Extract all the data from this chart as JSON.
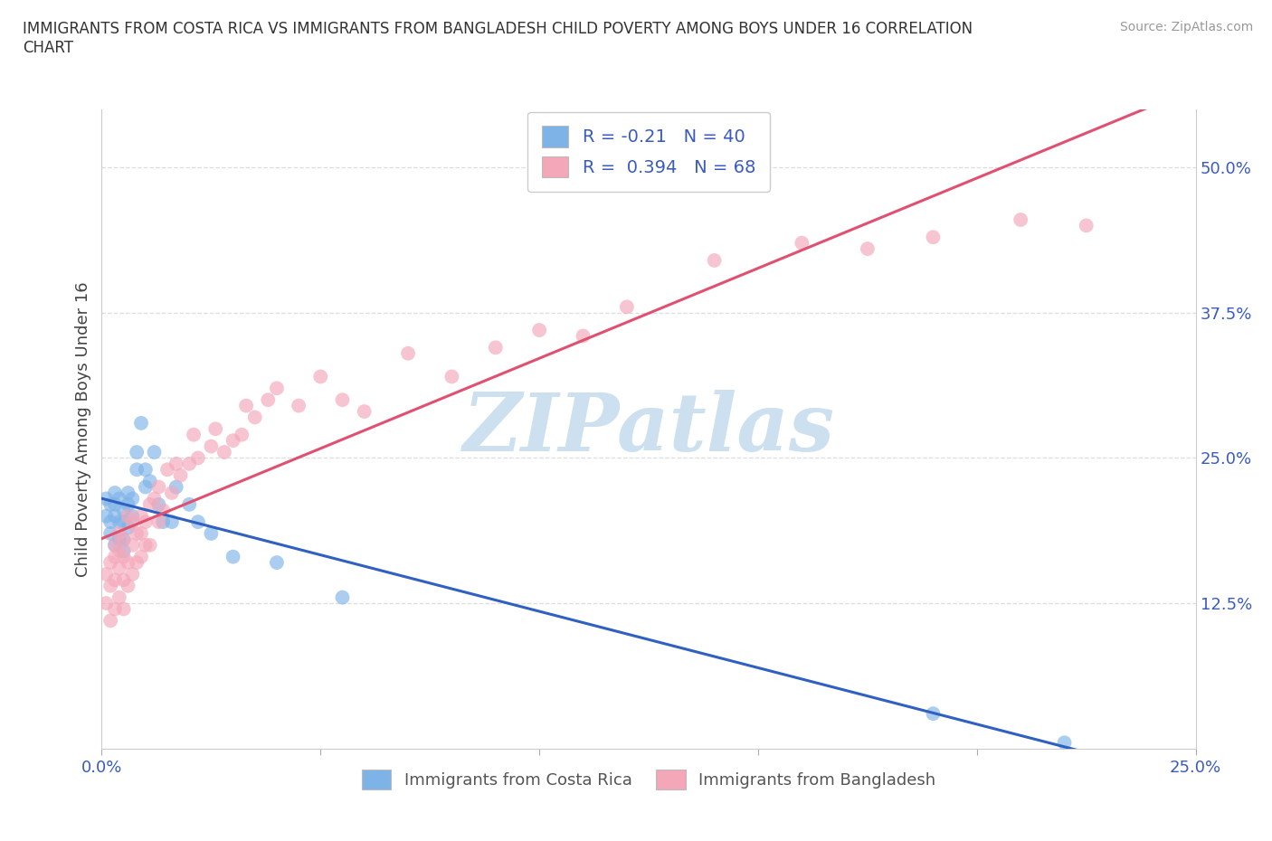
{
  "title": "IMMIGRANTS FROM COSTA RICA VS IMMIGRANTS FROM BANGLADESH CHILD POVERTY AMONG BOYS UNDER 16 CORRELATION\nCHART",
  "source_text": "Source: ZipAtlas.com",
  "ylabel": "Child Poverty Among Boys Under 16",
  "xlim": [
    0.0,
    0.25
  ],
  "ylim": [
    0.0,
    0.55
  ],
  "xticks": [
    0.0,
    0.05,
    0.1,
    0.15,
    0.2,
    0.25
  ],
  "xticklabels": [
    "0.0%",
    "",
    "",
    "",
    "",
    "25.0%"
  ],
  "yticks": [
    0.0,
    0.125,
    0.25,
    0.375,
    0.5
  ],
  "yticklabels": [
    "",
    "12.5%",
    "25.0%",
    "37.5%",
    "50.0%"
  ],
  "costa_rica_color": "#7eb3e8",
  "bangladesh_color": "#f4a7b9",
  "costa_rica_line_color": "#3060c0",
  "bangladesh_line_color": "#e05070",
  "costa_rica_R": -0.21,
  "costa_rica_N": 40,
  "bangladesh_R": 0.394,
  "bangladesh_N": 68,
  "legend_text_color": "#3a5bbf",
  "watermark_text": "ZIPatlas",
  "watermark_color": "#cce0f0",
  "costa_rica_x": [
    0.001,
    0.001,
    0.002,
    0.002,
    0.002,
    0.003,
    0.003,
    0.003,
    0.003,
    0.004,
    0.004,
    0.004,
    0.005,
    0.005,
    0.005,
    0.005,
    0.006,
    0.006,
    0.006,
    0.007,
    0.007,
    0.008,
    0.008,
    0.009,
    0.01,
    0.01,
    0.011,
    0.012,
    0.013,
    0.014,
    0.016,
    0.017,
    0.02,
    0.022,
    0.025,
    0.03,
    0.04,
    0.055,
    0.19,
    0.22
  ],
  "costa_rica_y": [
    0.2,
    0.215,
    0.195,
    0.21,
    0.185,
    0.175,
    0.2,
    0.21,
    0.22,
    0.18,
    0.195,
    0.215,
    0.17,
    0.18,
    0.195,
    0.205,
    0.19,
    0.21,
    0.22,
    0.2,
    0.215,
    0.24,
    0.255,
    0.28,
    0.225,
    0.24,
    0.23,
    0.255,
    0.21,
    0.195,
    0.195,
    0.225,
    0.21,
    0.195,
    0.185,
    0.165,
    0.16,
    0.13,
    0.03,
    0.005
  ],
  "bangladesh_x": [
    0.001,
    0.001,
    0.002,
    0.002,
    0.002,
    0.003,
    0.003,
    0.003,
    0.003,
    0.004,
    0.004,
    0.004,
    0.004,
    0.005,
    0.005,
    0.005,
    0.005,
    0.006,
    0.006,
    0.006,
    0.007,
    0.007,
    0.007,
    0.008,
    0.008,
    0.009,
    0.009,
    0.009,
    0.01,
    0.01,
    0.011,
    0.011,
    0.012,
    0.013,
    0.013,
    0.014,
    0.015,
    0.016,
    0.017,
    0.018,
    0.02,
    0.021,
    0.022,
    0.025,
    0.026,
    0.028,
    0.03,
    0.032,
    0.033,
    0.035,
    0.038,
    0.04,
    0.045,
    0.05,
    0.055,
    0.06,
    0.07,
    0.08,
    0.09,
    0.1,
    0.11,
    0.12,
    0.14,
    0.16,
    0.175,
    0.19,
    0.21,
    0.225
  ],
  "bangladesh_y": [
    0.125,
    0.15,
    0.11,
    0.14,
    0.16,
    0.12,
    0.145,
    0.165,
    0.175,
    0.13,
    0.155,
    0.17,
    0.185,
    0.12,
    0.145,
    0.165,
    0.18,
    0.14,
    0.16,
    0.2,
    0.15,
    0.175,
    0.195,
    0.16,
    0.185,
    0.165,
    0.185,
    0.2,
    0.175,
    0.195,
    0.175,
    0.21,
    0.215,
    0.195,
    0.225,
    0.205,
    0.24,
    0.22,
    0.245,
    0.235,
    0.245,
    0.27,
    0.25,
    0.26,
    0.275,
    0.255,
    0.265,
    0.27,
    0.295,
    0.285,
    0.3,
    0.31,
    0.295,
    0.32,
    0.3,
    0.29,
    0.34,
    0.32,
    0.345,
    0.36,
    0.355,
    0.38,
    0.42,
    0.435,
    0.43,
    0.44,
    0.455,
    0.45
  ],
  "grid_color": "#dddddd",
  "tick_color": "#3a5bbf",
  "axis_color": "#cccccc"
}
